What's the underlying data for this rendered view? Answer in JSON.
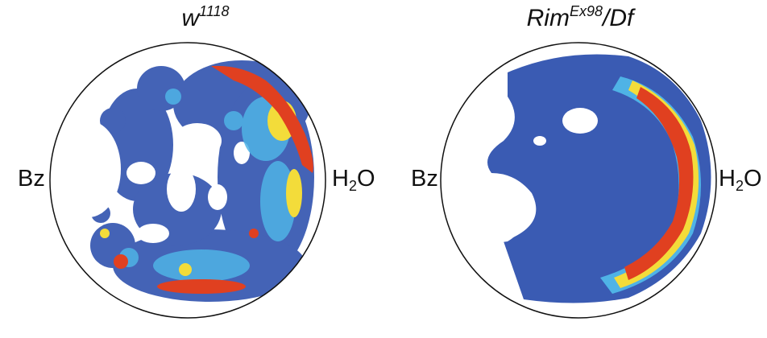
{
  "panels": [
    {
      "genotype_base": "w",
      "genotype_sup": "1118",
      "genotype_tail": "",
      "left_label": "Bz",
      "right_label_main": "H",
      "right_label_sub": "2",
      "right_label_tail": "O"
    },
    {
      "genotype_base": "Rim",
      "genotype_sup": "Ex98",
      "genotype_tail": "/Df",
      "left_label": "Bz",
      "right_label_main": "H",
      "right_label_sub": "2",
      "right_label_tail": "O"
    }
  ],
  "colors": {
    "low": "#3a5bb3",
    "mid": "#4fb3e6",
    "high_mid": "#f3dc3a",
    "high": "#e04020",
    "outline": "#111111"
  }
}
